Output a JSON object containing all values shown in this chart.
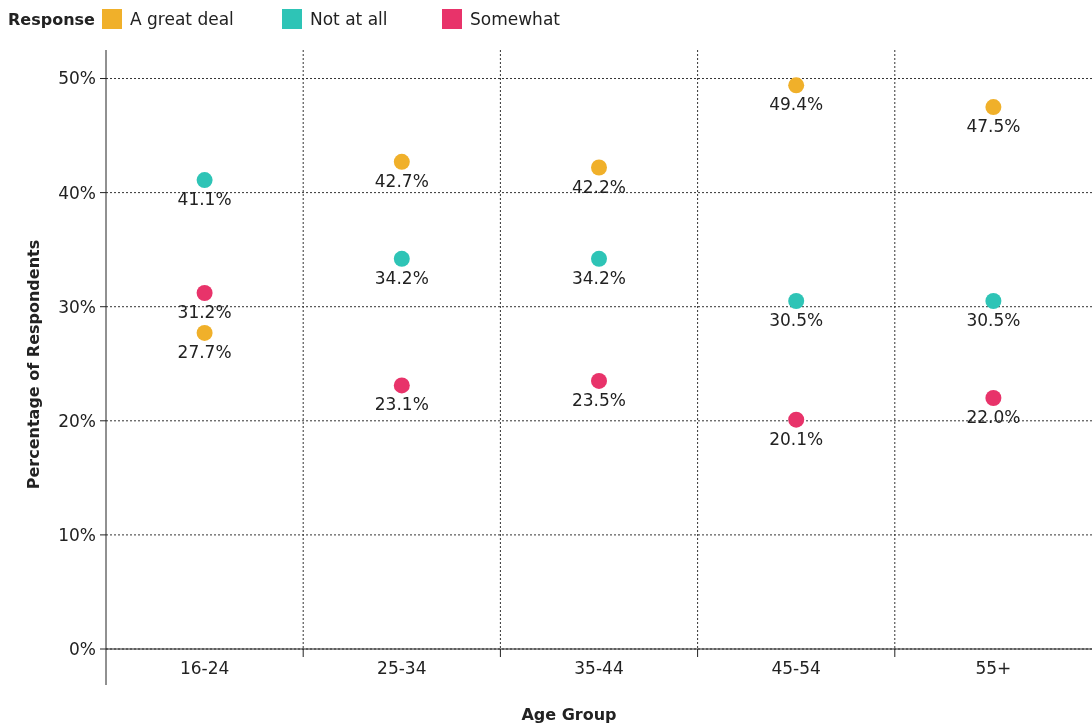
{
  "chart_data": {
    "type": "scatter",
    "xlabel": "Age Group",
    "ylabel": "Percentage of Respondents",
    "legend_title": "Response",
    "legend": "top left",
    "grid": true,
    "marker": "circle",
    "categories": [
      "16-24",
      "25-34",
      "35-44",
      "45-54",
      "55+"
    ],
    "ylim": [
      0,
      52.5
    ],
    "yticks": [
      {
        "value": 0,
        "label": "0%"
      },
      {
        "value": 10,
        "label": "10%"
      },
      {
        "value": 20,
        "label": "20%"
      },
      {
        "value": 30,
        "label": "30%"
      },
      {
        "value": 40,
        "label": "40%"
      },
      {
        "value": 50,
        "label": "50%"
      }
    ],
    "series": [
      {
        "name": "A great deal",
        "color": "#f0b02a",
        "values": [
          27.7,
          42.7,
          42.2,
          49.4,
          47.5
        ],
        "value_labels": [
          "27.7%",
          "42.7%",
          "42.2%",
          "49.4%",
          "47.5%"
        ]
      },
      {
        "name": "Not at all",
        "color": "#2ec4b6",
        "values": [
          41.1,
          34.2,
          34.2,
          30.5,
          30.5
        ],
        "value_labels": [
          "41.1%",
          "34.2%",
          "34.2%",
          "30.5%",
          "30.5%"
        ]
      },
      {
        "name": "Somewhat",
        "color": "#e8336a",
        "values": [
          31.2,
          23.1,
          23.5,
          20.1,
          22.0
        ],
        "value_labels": [
          "31.2%",
          "23.1%",
          "23.5%",
          "20.1%",
          "22.0%"
        ]
      }
    ]
  }
}
